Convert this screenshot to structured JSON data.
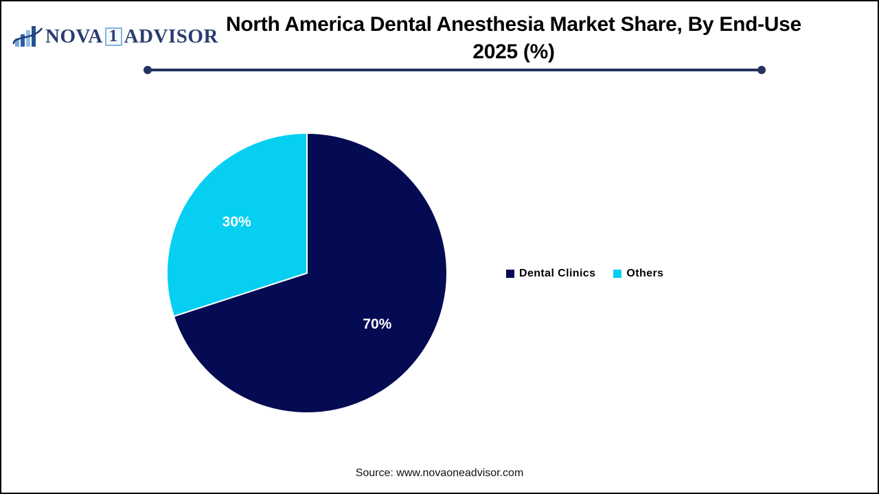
{
  "page": {
    "background": "#ffffff",
    "border_color": "#000000"
  },
  "logo": {
    "icon": "bar-chart-logo-icon",
    "word_left": "NOVA",
    "word_boxed": "1",
    "word_right": "ADVISOR",
    "text_color": "#2a3d70",
    "box_border_color": "#85b5dc",
    "bar_colors": [
      "#7aa7d6",
      "#2f5fa5",
      "#8fc0e4",
      "#27518f"
    ],
    "swoosh_color": "#1d3e7a"
  },
  "header": {
    "title_line1": "North America Dental Anesthesia Market Share, By End-Use",
    "title_line2": "2025 (%)",
    "title_color": "#000000",
    "divider_color": "#24335e"
  },
  "chart_data": {
    "type": "pie",
    "title": "North America Dental Anesthesia Market Share, By End-Use 2025 (%)",
    "categories": [
      "Dental Clinics",
      "Others"
    ],
    "values": [
      70,
      30
    ],
    "slice_labels": [
      "70%",
      "30%"
    ],
    "colors": [
      "#050b52",
      "#06cff2"
    ],
    "label_color": "#ffffff",
    "slice_border_color": "#ffffff",
    "start_angle_deg": 0,
    "direction": "clockwise",
    "legend_position": "right"
  },
  "legend": {
    "items": [
      {
        "label": "Dental Clinics",
        "color": "#050b52"
      },
      {
        "label": "Others",
        "color": "#06cff2"
      }
    ]
  },
  "footer": {
    "source_text": "Source: www.novaoneadvisor.com"
  }
}
